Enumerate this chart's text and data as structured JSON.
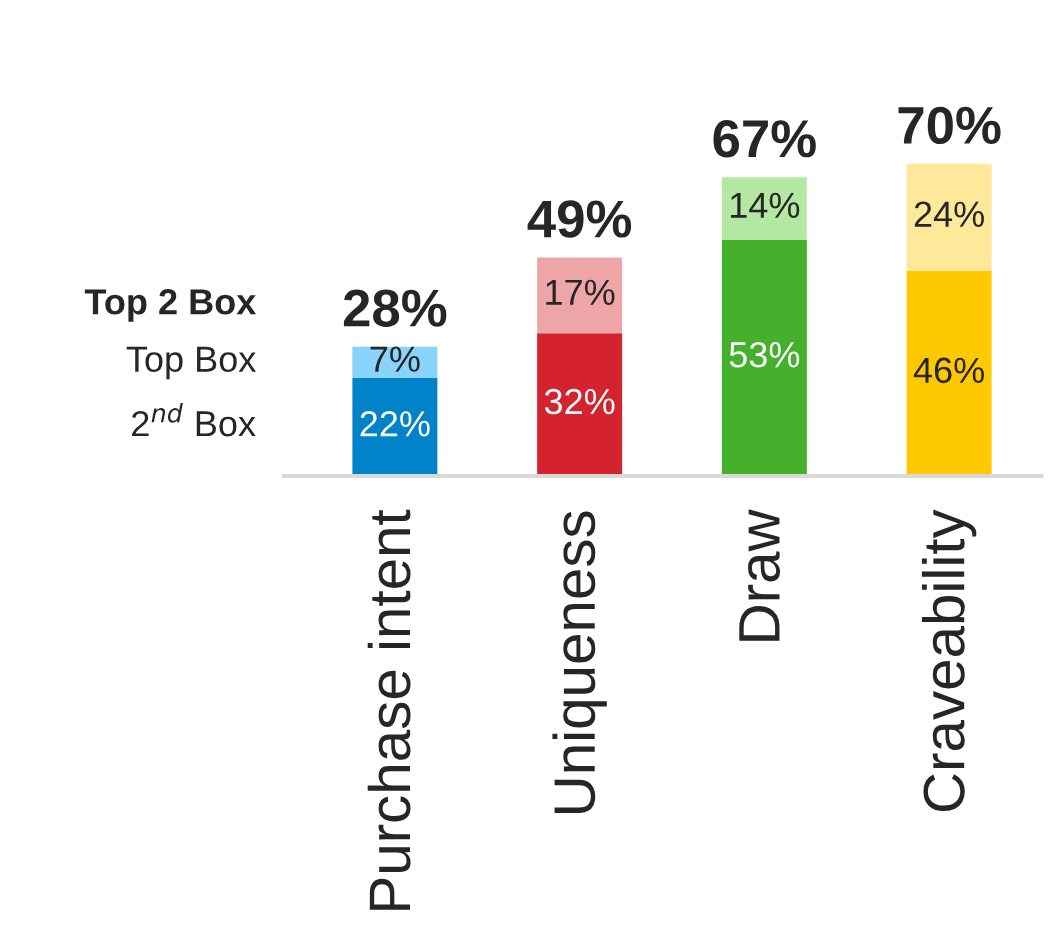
{
  "chart_data": {
    "type": "bar",
    "stacked": true,
    "categories": [
      "Purchase intent",
      "Uniqueness",
      "Draw",
      "Craveability"
    ],
    "series": [
      {
        "name": "2$^{nd}$ Box",
        "colors": [
          "#0083c9",
          "#d4232f",
          "#45b02b",
          "#ffc900"
        ],
        "values": [
          22,
          32,
          53,
          46
        ],
        "value_labels": [
          "22%",
          "32%",
          "53%",
          "46%"
        ]
      },
      {
        "name": "Top Box",
        "colors": [
          "#8ad3fc",
          "#eea5a8",
          "#b2e8a2",
          "#ffe899"
        ],
        "values": [
          7,
          17,
          14,
          24
        ],
        "value_labels": [
          "7%",
          "17%",
          "14%",
          "24%"
        ]
      }
    ],
    "totals": [
      "28%",
      "49%",
      "67%",
      "70%"
    ],
    "legend_title": "Top 2 Box",
    "legend": "left",
    "grid": false
  }
}
